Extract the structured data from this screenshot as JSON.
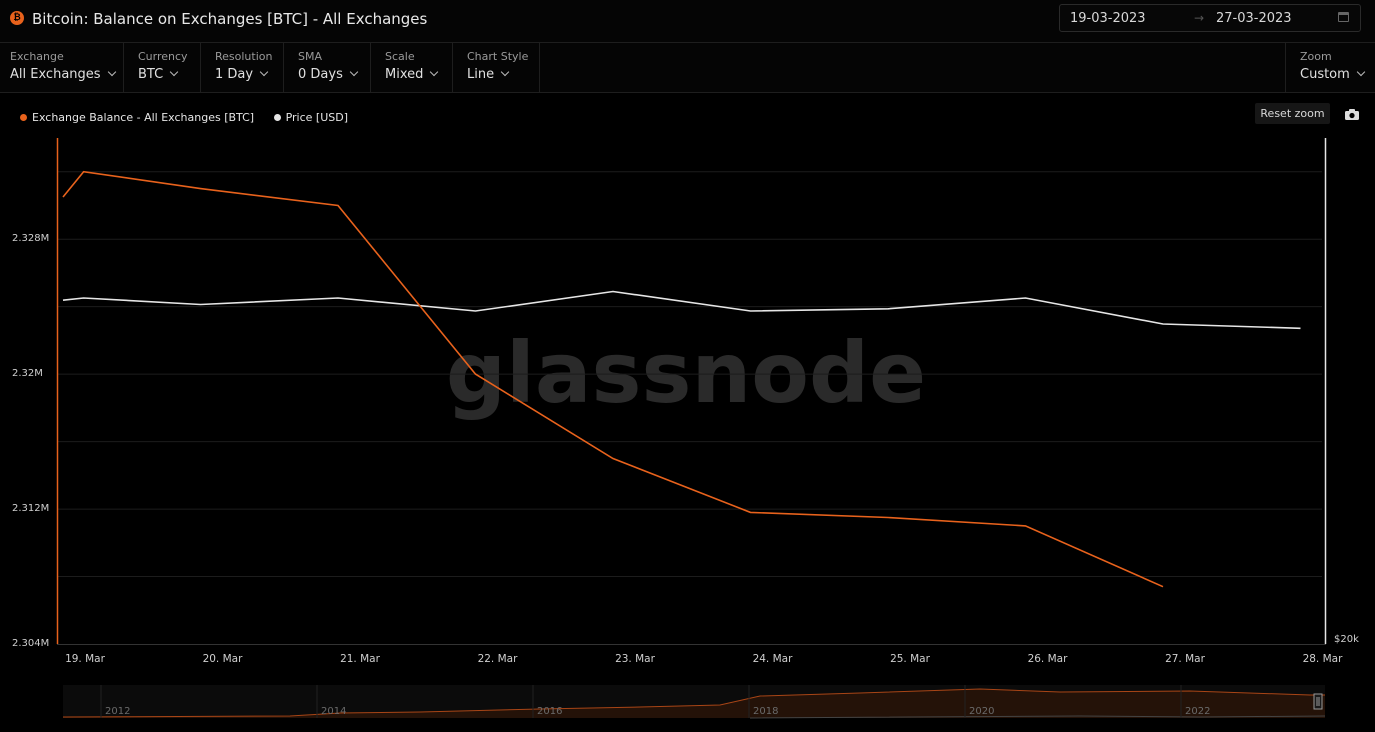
{
  "header": {
    "logo_glyph": "₿",
    "title": "Bitcoin: Balance on Exchanges [BTC] - All Exchanges",
    "date_from": "19-03-2023",
    "date_arrow": "→",
    "date_to": "27-03-2023",
    "calendar_icon": "calendar-icon"
  },
  "controls": {
    "exchange": {
      "label": "Exchange",
      "value": "All Exchanges"
    },
    "currency": {
      "label": "Currency",
      "value": "BTC"
    },
    "resolution": {
      "label": "Resolution",
      "value": "1 Day"
    },
    "sma": {
      "label": "SMA",
      "value": "0 Days"
    },
    "scale": {
      "label": "Scale",
      "value": "Mixed"
    },
    "chart_style": {
      "label": "Chart Style",
      "value": "Line"
    },
    "zoom": {
      "label": "Zoom",
      "value": "Custom"
    }
  },
  "toolbar": {
    "reset_zoom": "Reset zoom",
    "camera_icon": "camera-icon"
  },
  "watermark": "glassnode",
  "colors": {
    "balance": "#e8621c",
    "price": "#e6e6e6",
    "background": "#000000"
  },
  "chart_data": {
    "type": "line",
    "legend_placement": "top-left",
    "grid": true,
    "x": [
      "19. Mar",
      "20. Mar",
      "21. Mar",
      "22. Mar",
      "23. Mar",
      "24. Mar",
      "25. Mar",
      "26. Mar",
      "27. Mar",
      "28. Mar"
    ],
    "series": [
      {
        "name": "Exchange Balance - All Exchanges [BTC]",
        "axis": "left",
        "x": [
          0,
          0.15,
          1.0,
          2.0,
          3.0,
          4.0,
          5.0,
          6.0,
          7.0,
          8.0
        ],
        "values": [
          2330500,
          2332000,
          2331000,
          2330000,
          2320000,
          2315000,
          2311800,
          2311500,
          2311000,
          2307400
        ]
      },
      {
        "name": "Price [USD]",
        "axis": "right",
        "x": [
          0,
          0.15,
          1,
          2,
          3,
          4,
          5,
          6,
          7,
          8,
          9
        ],
        "values": [
          27950,
          28000,
          27850,
          28000,
          27700,
          28150,
          27700,
          27750,
          28000,
          27400,
          27300
        ]
      }
    ],
    "y_left": {
      "ticks": [
        2304000,
        2312000,
        2320000,
        2328000
      ],
      "tick_labels": [
        "2.304M",
        "2.312M",
        "2.32M",
        "2.328M"
      ],
      "ylim": [
        2304000,
        2334000
      ]
    },
    "y_right": {
      "ticks": [
        20000
      ],
      "tick_labels": [
        "$20k"
      ]
    },
    "navigator": {
      "years": [
        "2012",
        "2014",
        "2016",
        "2018",
        "2020",
        "2022"
      ]
    }
  }
}
